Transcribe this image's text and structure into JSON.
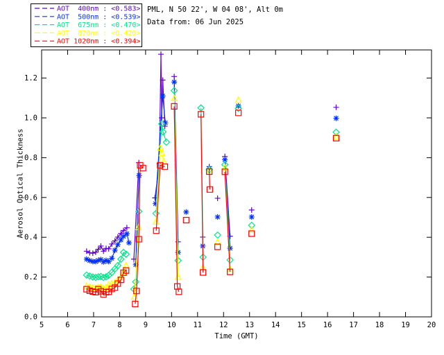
{
  "header": {
    "line1": "PML, N 50 22', W 04 08', Alt 0m",
    "line2": "Data from: 06 Jun 2025"
  },
  "chart_data": {
    "type": "line",
    "title": "PML, N 50 22', W 04 08', Alt 0m",
    "subtitle": "Data from: 06 Jun 2025",
    "xlabel": "Time (GMT)",
    "ylabel": "Aerosol Optical Thickness",
    "xlim": [
      5,
      20
    ],
    "ylim": [
      0,
      1.3415
    ],
    "xticks": [
      5,
      6,
      7,
      8,
      9,
      10,
      11,
      12,
      13,
      14,
      15,
      16,
      17,
      18,
      19,
      20
    ],
    "yticks": [
      "0.0",
      "0.2",
      "0.4",
      "0.6",
      "0.8",
      "1.0",
      "1.2"
    ],
    "grid": false,
    "legend_position": "top-left",
    "series": [
      {
        "name": "400nm",
        "legend_label": "AOT  400nm",
        "mean_label": "<0.583>",
        "color": "#6000CC",
        "marker": "plus",
        "segments": [
          [
            [
              6.73,
              0.33
            ],
            [
              6.85,
              0.322
            ],
            [
              6.97,
              0.32
            ],
            [
              7.08,
              0.325
            ],
            [
              7.18,
              0.34
            ],
            [
              7.28,
              0.356
            ],
            [
              7.38,
              0.33
            ],
            [
              7.48,
              0.344
            ],
            [
              7.58,
              0.342
            ],
            [
              7.7,
              0.366
            ],
            [
              7.82,
              0.382
            ],
            [
              7.93,
              0.401
            ],
            [
              8.05,
              0.419
            ],
            [
              8.15,
              0.434
            ],
            [
              8.28,
              0.448
            ]
          ],
          [
            [
              8.55,
              0.29
            ],
            [
              8.74,
              0.775
            ]
          ],
          [
            [
              9.36,
              0.598
            ],
            [
              9.53,
              0.77
            ],
            [
              9.59,
              1.32
            ],
            [
              9.62,
              1.0
            ],
            [
              9.66,
              1.19
            ],
            [
              9.74,
              0.958
            ]
          ],
          [
            [
              10.1,
              1.208
            ],
            [
              10.25,
              0.377
            ]
          ],
          [
            [
              11.2,
              0.401
            ]
          ],
          [
            [
              11.45,
              0.755
            ]
          ],
          [
            [
              11.77,
              0.596
            ]
          ],
          [
            [
              12.05,
              0.806
            ],
            [
              12.25,
              0.405
            ]
          ],
          [
            [
              13.08,
              0.537
            ]
          ],
          [
            [
              16.33,
              1.053
            ]
          ]
        ]
      },
      {
        "name": "500nm",
        "legend_label": "AOT  500nm",
        "mean_label": "<0.539>",
        "color": "#0030FF",
        "marker": "asterisk",
        "segments": [
          [
            [
              6.73,
              0.29
            ],
            [
              6.85,
              0.283
            ],
            [
              6.97,
              0.278
            ],
            [
              7.08,
              0.278
            ],
            [
              7.18,
              0.284
            ],
            [
              7.28,
              0.288
            ],
            [
              7.38,
              0.276
            ],
            [
              7.48,
              0.284
            ],
            [
              7.58,
              0.278
            ],
            [
              7.7,
              0.294
            ],
            [
              7.82,
              0.335
            ],
            [
              7.93,
              0.363
            ],
            [
              8.05,
              0.387
            ],
            [
              8.15,
              0.405
            ],
            [
              8.28,
              0.418
            ],
            [
              8.36,
              0.372
            ]
          ],
          [
            [
              8.62,
              0.262
            ],
            [
              8.75,
              0.71
            ]
          ],
          [
            [
              9.38,
              0.569
            ],
            [
              9.66,
              1.11
            ],
            [
              9.76,
              0.975
            ]
          ],
          [
            [
              10.1,
              1.18
            ],
            [
              10.25,
              0.324
            ]
          ],
          [
            [
              10.56,
              0.527
            ]
          ],
          [
            [
              11.2,
              0.356
            ]
          ],
          [
            [
              11.45,
              0.745
            ]
          ],
          [
            [
              11.77,
              0.502
            ]
          ],
          [
            [
              12.05,
              0.79
            ],
            [
              12.25,
              0.345
            ]
          ],
          [
            [
              12.57,
              1.06
            ]
          ],
          [
            [
              13.08,
              0.502
            ]
          ],
          [
            [
              16.33,
              0.998
            ]
          ]
        ]
      },
      {
        "name": "675nm",
        "legend_label": "AOT  675nm",
        "mean_label": "<0.470>",
        "color": "#00E58C",
        "marker": "diamond",
        "segments": [
          [
            [
              6.73,
              0.21
            ],
            [
              6.85,
              0.205
            ],
            [
              6.97,
              0.2
            ],
            [
              7.08,
              0.198
            ],
            [
              7.18,
              0.201
            ],
            [
              7.28,
              0.203
            ],
            [
              7.38,
              0.198
            ],
            [
              7.48,
              0.201
            ],
            [
              7.58,
              0.209
            ],
            [
              7.7,
              0.223
            ],
            [
              7.82,
              0.241
            ],
            [
              7.93,
              0.258
            ],
            [
              8.05,
              0.29
            ],
            [
              8.15,
              0.324
            ],
            [
              8.25,
              0.315
            ]
          ],
          [
            [
              8.55,
              0.14
            ],
            [
              8.62,
              0.176
            ],
            [
              8.74,
              0.53
            ]
          ],
          [
            [
              9.4,
              0.52
            ],
            [
              9.62,
              0.97
            ],
            [
              9.67,
              0.93
            ],
            [
              9.8,
              0.878
            ]
          ],
          [
            [
              10.1,
              1.137
            ],
            [
              10.25,
              0.283
            ]
          ],
          [
            [
              11.13,
              1.05
            ],
            [
              11.21,
              0.3
            ]
          ],
          [
            [
              11.45,
              0.74
            ]
          ],
          [
            [
              11.77,
              0.411
            ]
          ],
          [
            [
              12.05,
              0.765
            ],
            [
              12.25,
              0.286
            ]
          ],
          [
            [
              12.57,
              1.048
            ]
          ],
          [
            [
              13.08,
              0.46
            ]
          ],
          [
            [
              16.33,
              0.928
            ]
          ]
        ]
      },
      {
        "name": "870nm",
        "legend_label": "AOT  870nm",
        "mean_label": "<0.420>",
        "color": "#FFFF00",
        "marker": "triangle",
        "segments": [
          [
            [
              6.73,
              0.155
            ],
            [
              6.85,
              0.15
            ],
            [
              6.97,
              0.146
            ],
            [
              7.08,
              0.145
            ],
            [
              7.18,
              0.149
            ],
            [
              7.28,
              0.151
            ],
            [
              7.38,
              0.143
            ],
            [
              7.48,
              0.147
            ],
            [
              7.58,
              0.16
            ],
            [
              7.7,
              0.167
            ],
            [
              7.82,
              0.174
            ],
            [
              7.93,
              0.186
            ],
            [
              8.05,
              0.199
            ],
            [
              8.15,
              0.223
            ],
            [
              8.25,
              0.258
            ]
          ],
          [
            [
              8.57,
              0.101
            ],
            [
              8.73,
              0.45
            ]
          ],
          [
            [
              9.4,
              0.478
            ],
            [
              9.57,
              0.85
            ],
            [
              9.63,
              0.822
            ],
            [
              9.7,
              0.78
            ]
          ],
          [
            [
              10.1,
              1.098
            ],
            [
              10.25,
              0.2
            ]
          ],
          [
            [
              11.2,
              0.248
            ]
          ],
          [
            [
              11.45,
              0.735
            ]
          ],
          [
            [
              11.77,
              0.376
            ]
          ],
          [
            [
              12.05,
              0.751
            ],
            [
              12.25,
              0.24
            ]
          ],
          [
            [
              12.57,
              1.09
            ]
          ],
          [
            [
              13.08,
              0.436
            ]
          ],
          [
            [
              16.33,
              0.905
            ]
          ]
        ]
      },
      {
        "name": "1020nm",
        "legend_label": "AOT 1020nm",
        "mean_label": "<0.394>",
        "color": "#FF0000",
        "marker": "square",
        "segments": [
          [
            [
              6.73,
              0.139
            ],
            [
              6.85,
              0.131
            ],
            [
              6.97,
              0.127
            ],
            [
              7.08,
              0.124
            ],
            [
              7.18,
              0.139
            ],
            [
              7.28,
              0.129
            ],
            [
              7.38,
              0.113
            ],
            [
              7.48,
              0.124
            ],
            [
              7.58,
              0.126
            ],
            [
              7.7,
              0.14
            ],
            [
              7.82,
              0.147
            ],
            [
              7.93,
              0.167
            ],
            [
              8.05,
              0.186
            ],
            [
              8.15,
              0.222
            ],
            [
              8.25,
              0.233
            ]
          ],
          [
            [
              8.6,
              0.065
            ],
            [
              8.65,
              0.13
            ],
            [
              8.74,
              0.39
            ],
            [
              8.79,
              0.762
            ],
            [
              8.9,
              0.748
            ]
          ],
          [
            [
              9.41,
              0.433
            ],
            [
              9.56,
              0.762
            ],
            [
              9.74,
              0.755
            ]
          ],
          [
            [
              10.1,
              1.058
            ],
            [
              10.22,
              0.153
            ],
            [
              10.28,
              0.126
            ]
          ],
          [
            [
              10.56,
              0.486
            ]
          ],
          [
            [
              11.13,
              1.018
            ],
            [
              11.21,
              0.223
            ]
          ],
          [
            [
              11.45,
              0.73
            ],
            [
              11.47,
              0.64
            ]
          ],
          [
            [
              11.77,
              0.352
            ]
          ],
          [
            [
              12.05,
              0.729
            ],
            [
              12.25,
              0.226
            ]
          ],
          [
            [
              12.57,
              1.025
            ]
          ],
          [
            [
              13.08,
              0.418
            ]
          ],
          [
            [
              16.33,
              0.898
            ]
          ]
        ]
      }
    ]
  },
  "colors": {
    "frame": "#000000",
    "background": "#FFFFFF"
  }
}
